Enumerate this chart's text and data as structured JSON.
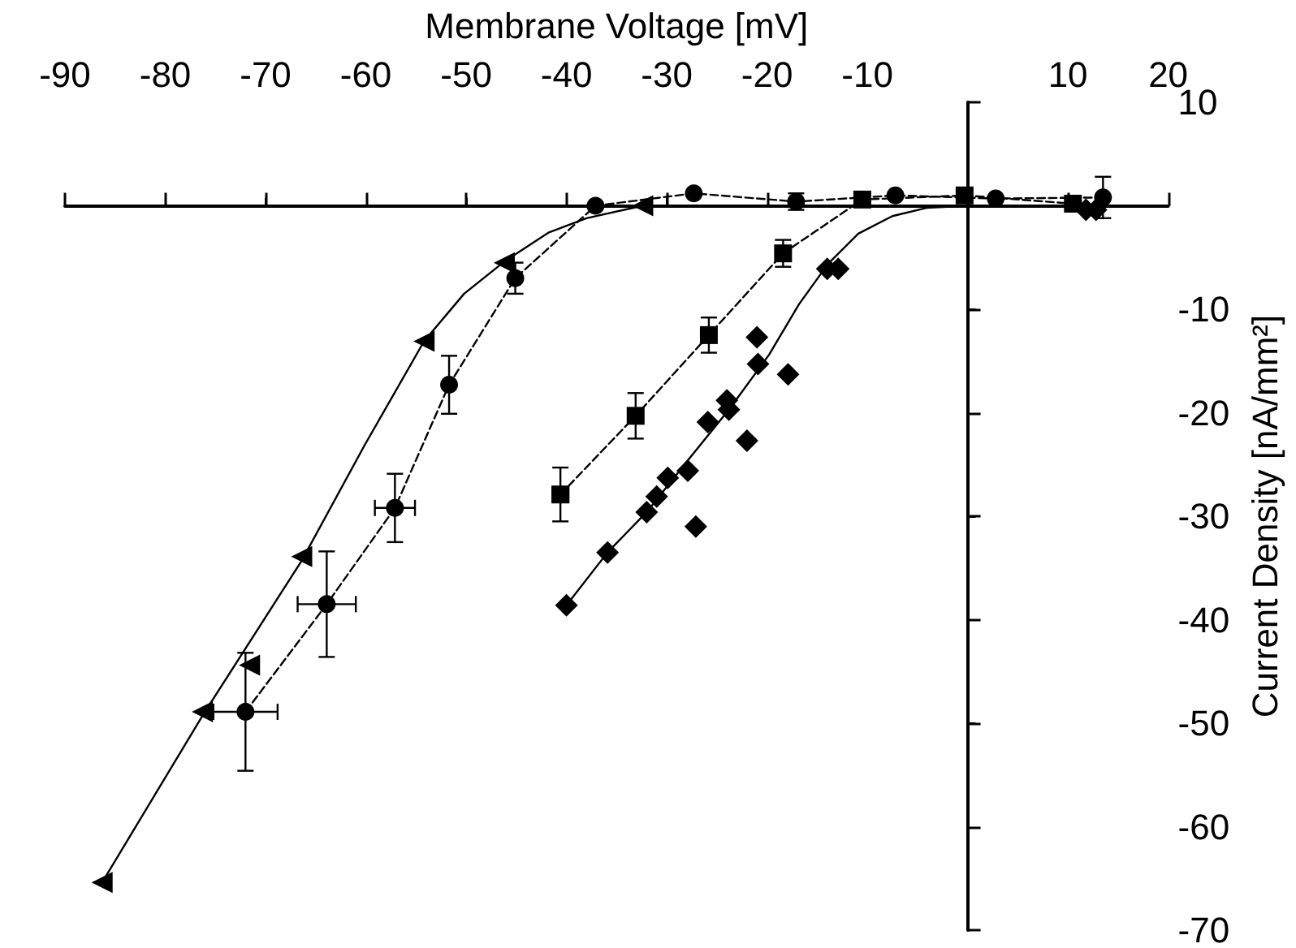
{
  "chart_data": {
    "type": "scatter",
    "xlabel": "Membrane Voltage [mV]",
    "ylabel": "Current Density [nA/mm²]",
    "xlim": [
      -90,
      20
    ],
    "xticks": [
      -90,
      -80,
      -70,
      -60,
      -50,
      -40,
      -30,
      -20,
      -10,
      {
        "value": 0,
        "label": null
      },
      10,
      20
    ],
    "ylim": [
      -70,
      10
    ],
    "yticks": [
      -70,
      -60,
      -50,
      -40,
      -30,
      -20,
      -10,
      {
        "value": 0,
        "label": null
      },
      10
    ],
    "series": [
      {
        "type": "line",
        "color": "#000000",
        "marker": "none",
        "line_style": "solid",
        "x": [
          -86.3,
          -76.3,
          -66.4,
          -60.1,
          -54.2,
          -50.2,
          -46.2,
          -41.8,
          -38,
          -32.4
        ],
        "values": [
          -65.4,
          -49.3,
          -34.3,
          -23.1,
          -13.1,
          -8.5,
          -5.4,
          -2.6,
          -1.2,
          0
        ]
      },
      {
        "type": "line",
        "color": "#000000",
        "marker": "none",
        "line_style": "solid",
        "x": [
          -40,
          -35.9,
          -32,
          -27.9,
          -23.8,
          -19.8,
          -16.8,
          -13.9,
          -10.9,
          -7.5,
          -4.1,
          0,
          10
        ],
        "values": [
          -38.6,
          -33.5,
          -29.6,
          -24.6,
          -19.7,
          -14.4,
          -9.5,
          -5.6,
          -2.7,
          -1,
          -0.2,
          0,
          0
        ]
      },
      {
        "color": "#000000",
        "marker": "triangle",
        "x": [
          -86.3,
          -76.3,
          -71.6,
          -66.4,
          -54.2,
          -46.2,
          -32.4
        ],
        "values": [
          -65.4,
          -48.9,
          -44.4,
          -33.9,
          -13.1,
          -5.5,
          0
        ]
      },
      {
        "type": "line",
        "color": "#000000",
        "marker": "circle",
        "line_style": "dashed",
        "x": [
          -72,
          -63.9,
          -57.1,
          -51.7,
          -45.1,
          -37.1,
          -27.3,
          -17.1,
          -7.2,
          2.8,
          13.5
        ],
        "values": [
          -48.9,
          -38.5,
          -29.2,
          -17.3,
          -7,
          0,
          1.2,
          0.4,
          1,
          0.7,
          0.8
        ],
        "errors": [
          5.7,
          5.1,
          3.3,
          2.8,
          1.5,
          null,
          null,
          0.8,
          null,
          null,
          2
        ],
        "xerrors": [
          3.2,
          2.9,
          2,
          null,
          null,
          null,
          null,
          null,
          null,
          null,
          null
        ]
      },
      {
        "type": "line",
        "color": "#000000",
        "marker": "square",
        "line_style": "dashed",
        "x": [
          -40.6,
          -33.1,
          -25.8,
          -18.4,
          -10.5,
          -0.3,
          10.5
        ],
        "values": [
          -27.9,
          -20.3,
          -12.5,
          -4.6,
          0.6,
          1,
          0.2
        ],
        "errors": [
          2.6,
          2.2,
          1.7,
          1.3,
          null,
          null,
          null
        ],
        "xerrors": [
          0.8,
          null,
          null,
          null,
          null,
          null,
          null
        ]
      },
      {
        "color": "#000000",
        "marker": "diamond",
        "x": [
          -40,
          -35.9,
          -32,
          -31,
          -29.9,
          -27.9,
          -27.1,
          -25.9,
          -24,
          -23.8,
          -22,
          -20.9,
          -21,
          -17.9,
          -14,
          -12.9,
          11.8,
          12.8
        ],
        "values": [
          -38.6,
          -33.5,
          -29.6,
          -28.1,
          -26.3,
          -25.6,
          -31,
          -20.9,
          -18.8,
          -19.7,
          -22.7,
          -15.3,
          -12.7,
          -16.3,
          -6.1,
          -6.1,
          -0.4,
          -0.4
        ]
      }
    ]
  }
}
